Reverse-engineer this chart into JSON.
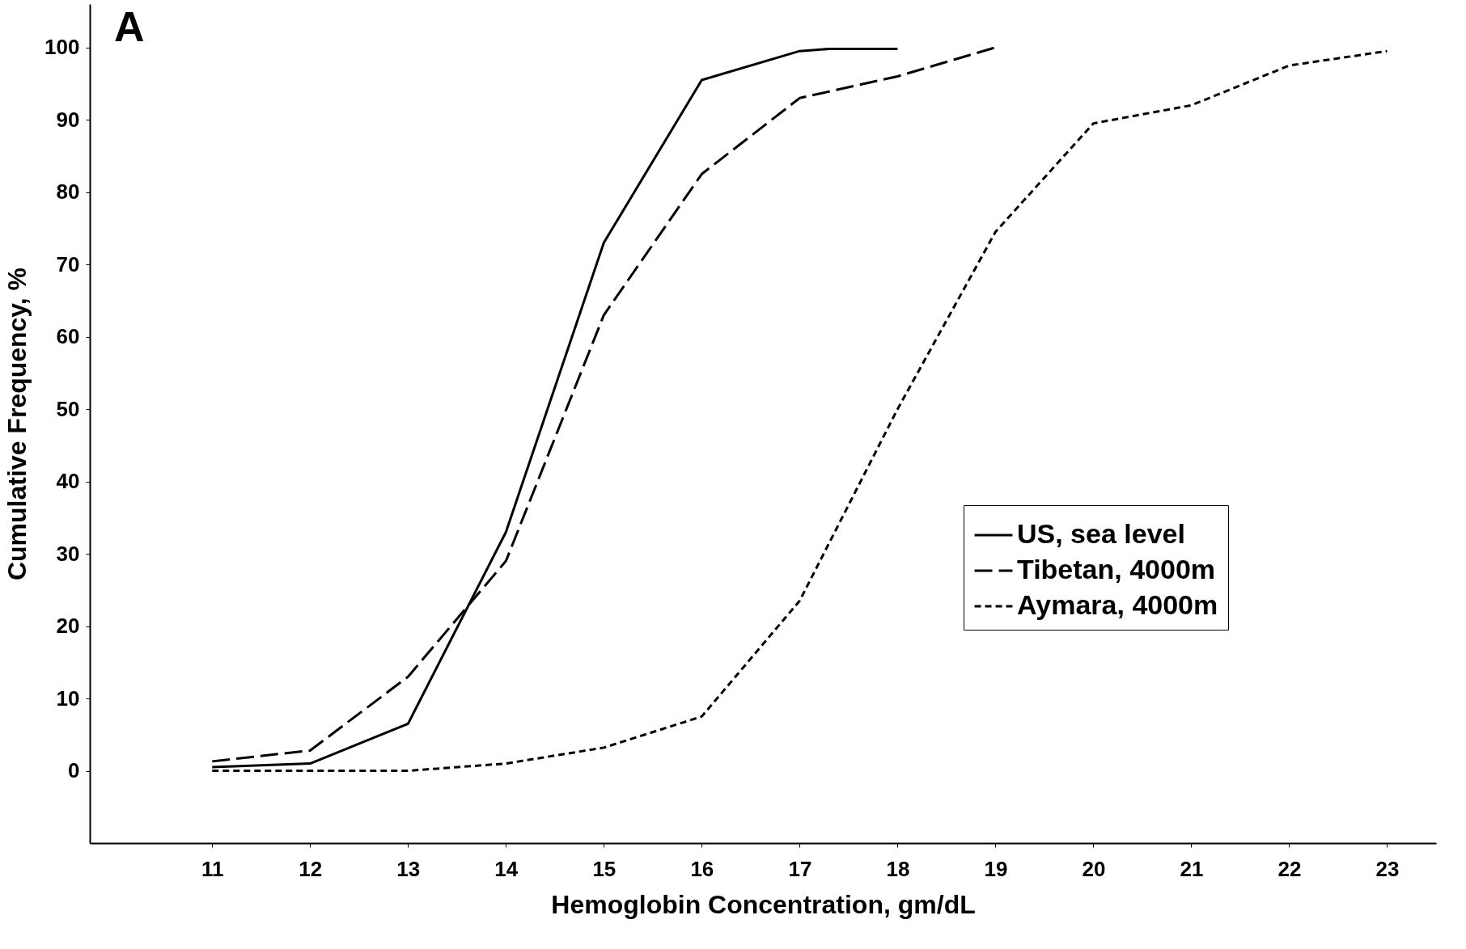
{
  "chart_data": {
    "type": "line",
    "xlabel": "Hemoglobin Concentration, gm/dL",
    "ylabel": "Cumulative Frequency, %",
    "annotations": [
      "A"
    ],
    "x": [
      11,
      12,
      13,
      14,
      15,
      16,
      17,
      18,
      19,
      20,
      21,
      22,
      23
    ],
    "series": [
      {
        "name": "US, sea level",
        "color": "#000000",
        "line_style": "solid",
        "x": [
          11,
          12,
          13,
          14,
          15,
          16,
          17,
          17.3,
          18
        ],
        "values": [
          0.5,
          1,
          6.5,
          33,
          73,
          95.5,
          99.5,
          99.8,
          99.8
        ]
      },
      {
        "name": "Tibetan, 4000m",
        "color": "#000000",
        "line_style": "dashed",
        "x": [
          11,
          12,
          13,
          14,
          15,
          16,
          17,
          18,
          19
        ],
        "values": [
          1.3,
          2.8,
          13,
          29,
          63,
          82.5,
          93,
          96,
          100
        ]
      },
      {
        "name": "Aymara, 4000m",
        "color": "#000000",
        "line_style": "dotted",
        "values": [
          0,
          0,
          0,
          1,
          3.2,
          7.5,
          23.5,
          50,
          74.5,
          89.5,
          92,
          97.5,
          99.5
        ]
      }
    ],
    "xlim": [
      9.75,
      23.5
    ],
    "ylim": [
      -10,
      106
    ],
    "xticks": [
      11,
      12,
      13,
      14,
      15,
      16,
      17,
      18,
      19,
      20,
      21,
      22,
      23
    ],
    "yticks": [
      0,
      10,
      20,
      30,
      40,
      50,
      60,
      70,
      80,
      90,
      100
    ],
    "grid": false,
    "legend": "right",
    "marker": "none"
  }
}
